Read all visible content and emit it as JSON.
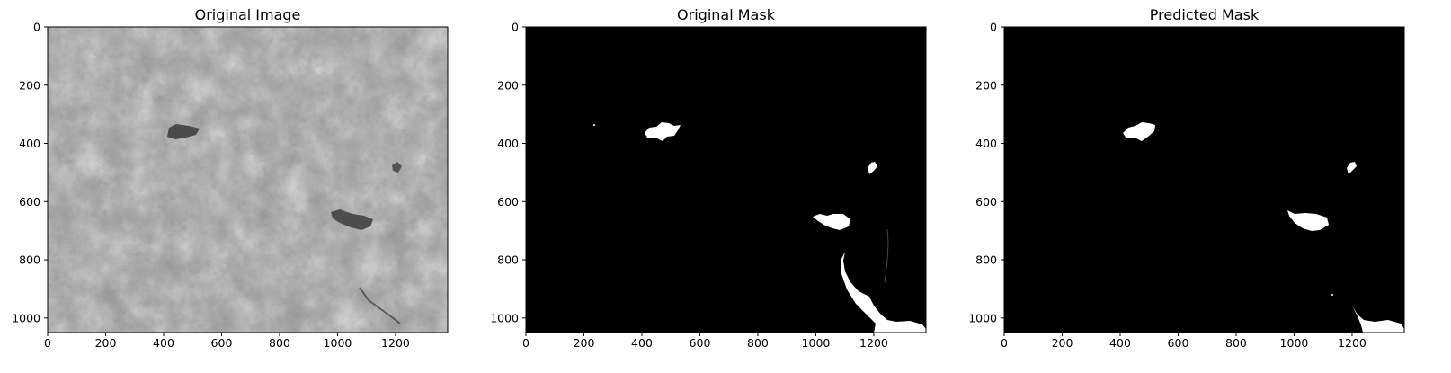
{
  "figure": {
    "panels": [
      {
        "id": "original",
        "title": "Original Image",
        "image_kind": "grayscale aerial/satellite image"
      },
      {
        "id": "mask",
        "title": "Original Mask",
        "image_kind": "binary mask"
      },
      {
        "id": "pred",
        "title": "Predicted Mask",
        "image_kind": "binary mask"
      }
    ],
    "axes": {
      "x_ticks": [
        "0",
        "200",
        "400",
        "600",
        "800",
        "1000",
        "1200"
      ],
      "y_ticks": [
        "0",
        "200",
        "400",
        "600",
        "800",
        "1000"
      ],
      "xlim": [
        0,
        1380
      ],
      "ylim": [
        1050,
        0
      ]
    },
    "colors": {
      "background": "#000000",
      "mask": "#ffffff",
      "image_base": "#9a9a9a"
    }
  }
}
